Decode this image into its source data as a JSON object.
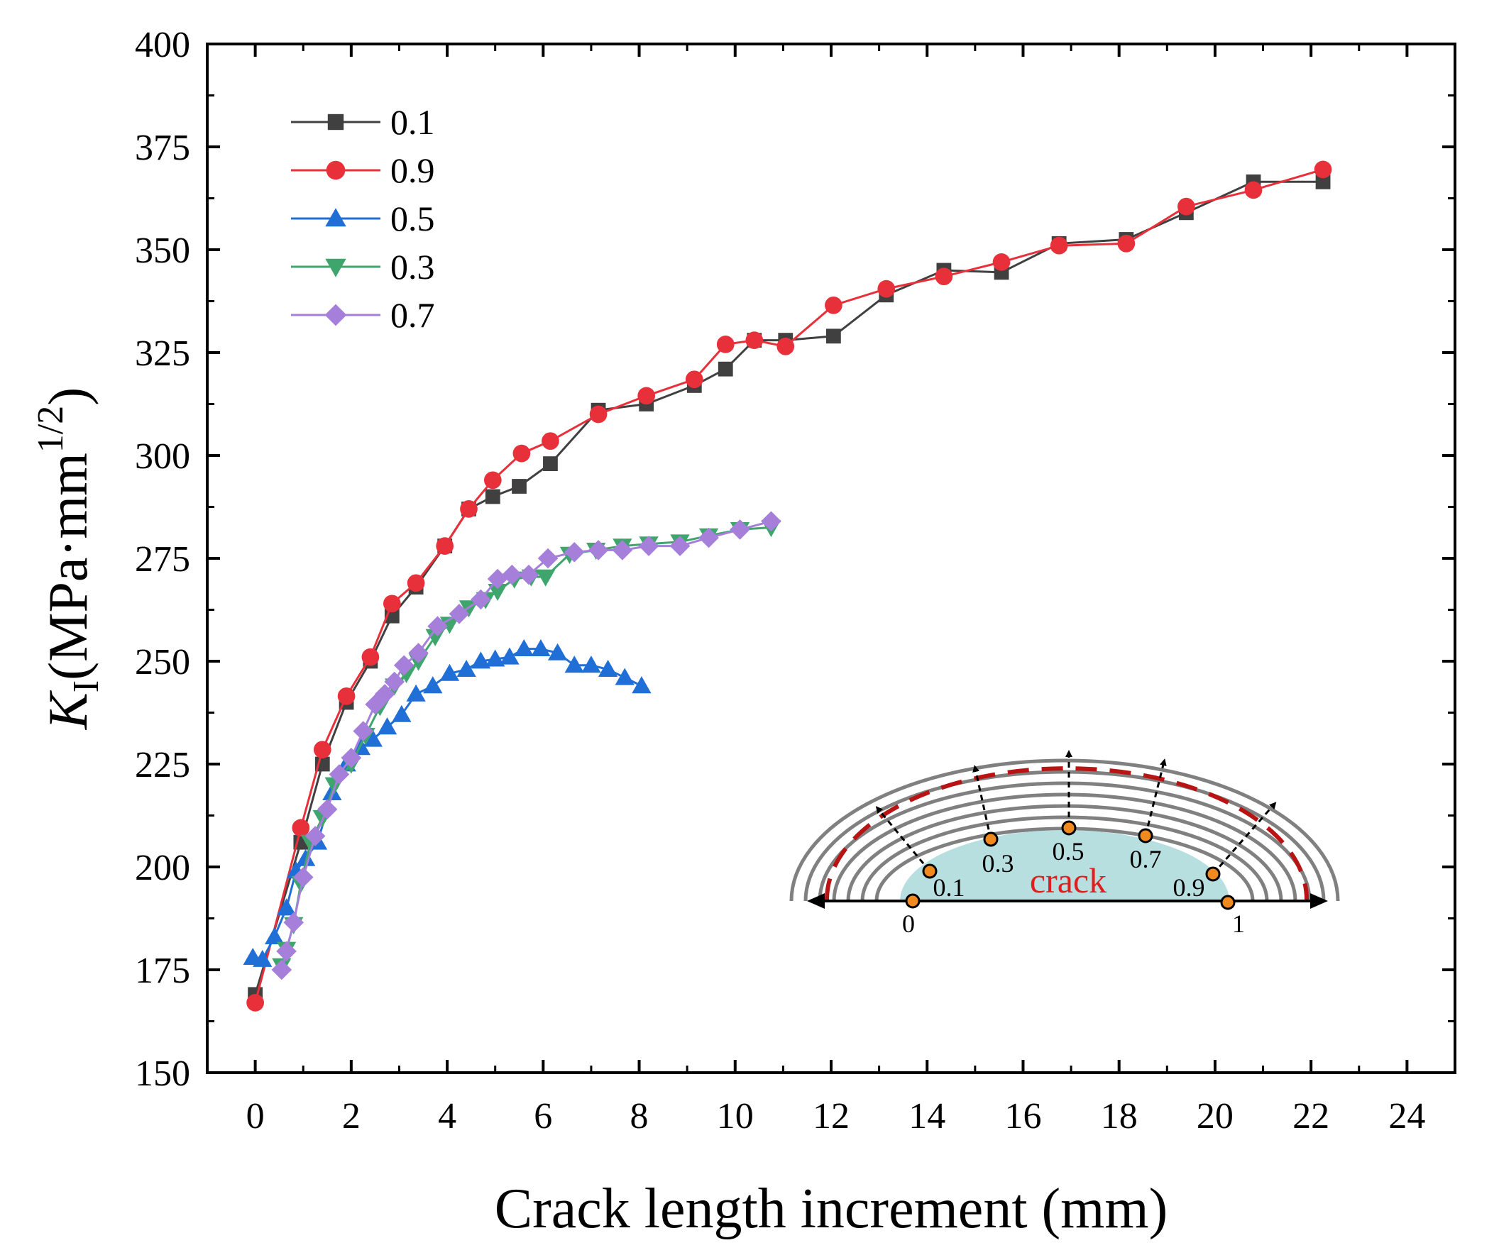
{
  "chart_data": {
    "type": "line",
    "xlabel": "Crack length increment (mm)",
    "ylabel": {
      "main": "K",
      "subscript": "I",
      "unit": "(MPa·mm",
      "superscript": "1/2",
      "close": ")"
    },
    "xlim": [
      -1,
      25
    ],
    "ylim": [
      150,
      400
    ],
    "xticks": [
      0,
      2,
      4,
      6,
      8,
      10,
      12,
      14,
      16,
      18,
      20,
      22,
      24
    ],
    "yticks": [
      150,
      175,
      200,
      225,
      250,
      275,
      300,
      325,
      350,
      375,
      400
    ],
    "legend_position": "top-left",
    "series": [
      {
        "name": "0.1",
        "color": "#404040",
        "marker": "square",
        "points": [
          [
            0,
            169
          ],
          [
            0.95,
            206
          ],
          [
            1.4,
            225
          ],
          [
            1.9,
            240
          ],
          [
            2.4,
            250
          ],
          [
            2.85,
            261
          ],
          [
            3.35,
            268
          ],
          [
            3.95,
            278
          ],
          [
            4.45,
            287
          ],
          [
            4.95,
            290
          ],
          [
            5.5,
            292.5
          ],
          [
            6.15,
            298
          ],
          [
            7.15,
            311
          ],
          [
            8.15,
            312.5
          ],
          [
            9.15,
            317
          ],
          [
            9.8,
            321
          ],
          [
            10.4,
            328
          ],
          [
            11.05,
            328
          ],
          [
            12.05,
            329
          ],
          [
            13.15,
            339
          ],
          [
            14.35,
            345
          ],
          [
            15.55,
            344.5
          ],
          [
            16.75,
            351.5
          ],
          [
            18.15,
            352.5
          ],
          [
            19.4,
            359
          ],
          [
            20.8,
            366.5
          ],
          [
            22.25,
            366.5
          ]
        ]
      },
      {
        "name": "0.9",
        "color": "#e8303a",
        "marker": "circle",
        "points": [
          [
            0,
            167
          ],
          [
            0.95,
            209.5
          ],
          [
            1.4,
            228.5
          ],
          [
            1.9,
            241.5
          ],
          [
            2.4,
            251
          ],
          [
            2.85,
            264
          ],
          [
            3.35,
            269
          ],
          [
            3.95,
            278
          ],
          [
            4.45,
            287
          ],
          [
            4.95,
            294
          ],
          [
            5.55,
            300.5
          ],
          [
            6.15,
            303.5
          ],
          [
            7.15,
            310
          ],
          [
            8.15,
            314.5
          ],
          [
            9.15,
            318.5
          ],
          [
            9.8,
            327
          ],
          [
            10.4,
            328
          ],
          [
            11.05,
            326.5
          ],
          [
            12.05,
            336.5
          ],
          [
            13.15,
            340.5
          ],
          [
            14.35,
            343.5
          ],
          [
            15.55,
            347
          ],
          [
            16.75,
            351
          ],
          [
            18.15,
            351.5
          ],
          [
            19.4,
            360.5
          ],
          [
            20.8,
            364.5
          ],
          [
            22.25,
            369.5
          ]
        ]
      },
      {
        "name": "0.5",
        "color": "#1f6fd6",
        "marker": "triangle-up",
        "points": [
          [
            -0.05,
            178
          ],
          [
            0.15,
            177.5
          ],
          [
            0.4,
            183
          ],
          [
            0.65,
            190
          ],
          [
            0.85,
            199
          ],
          [
            1.05,
            202
          ],
          [
            1.3,
            206
          ],
          [
            1.6,
            218
          ],
          [
            1.9,
            225
          ],
          [
            2.2,
            229
          ],
          [
            2.45,
            231
          ],
          [
            2.75,
            234
          ],
          [
            3.05,
            237
          ],
          [
            3.35,
            242
          ],
          [
            3.7,
            244
          ],
          [
            4.05,
            247
          ],
          [
            4.4,
            248
          ],
          [
            4.7,
            250
          ],
          [
            5.0,
            250.5
          ],
          [
            5.3,
            251
          ],
          [
            5.6,
            253
          ],
          [
            5.95,
            253
          ],
          [
            6.3,
            252
          ],
          [
            6.65,
            249
          ],
          [
            7.0,
            249
          ],
          [
            7.35,
            248
          ],
          [
            7.7,
            246
          ],
          [
            8.05,
            244
          ]
        ]
      },
      {
        "name": "0.3",
        "color": "#3ea56c",
        "marker": "triangle-down",
        "points": [
          [
            0.55,
            176
          ],
          [
            0.65,
            180
          ],
          [
            0.8,
            186
          ],
          [
            0.95,
            196
          ],
          [
            1.15,
            206
          ],
          [
            1.4,
            212
          ],
          [
            1.65,
            220
          ],
          [
            2.0,
            225
          ],
          [
            2.3,
            232
          ],
          [
            2.6,
            239
          ],
          [
            2.9,
            244
          ],
          [
            3.15,
            247
          ],
          [
            3.4,
            250
          ],
          [
            3.75,
            256
          ],
          [
            4.05,
            259
          ],
          [
            4.45,
            263
          ],
          [
            4.8,
            265
          ],
          [
            5.05,
            267
          ],
          [
            5.4,
            270
          ],
          [
            5.75,
            270.5
          ],
          [
            6.05,
            270.5
          ],
          [
            6.55,
            276
          ],
          [
            7.1,
            277
          ],
          [
            7.65,
            278
          ],
          [
            8.2,
            278.5
          ],
          [
            8.85,
            279
          ],
          [
            9.45,
            280.5
          ],
          [
            10.1,
            282
          ],
          [
            10.75,
            282.5
          ]
        ]
      },
      {
        "name": "0.7",
        "color": "#a57fd9",
        "marker": "diamond",
        "points": [
          [
            0.55,
            175
          ],
          [
            0.65,
            179.5
          ],
          [
            0.8,
            186.5
          ],
          [
            1.0,
            197.5
          ],
          [
            1.25,
            207.5
          ],
          [
            1.5,
            214
          ],
          [
            1.75,
            222.5
          ],
          [
            2.0,
            226.5
          ],
          [
            2.25,
            233
          ],
          [
            2.5,
            239.5
          ],
          [
            2.7,
            242
          ],
          [
            2.9,
            245
          ],
          [
            3.1,
            249
          ],
          [
            3.4,
            252
          ],
          [
            3.8,
            258.5
          ],
          [
            4.25,
            261.5
          ],
          [
            4.7,
            265
          ],
          [
            5.05,
            270
          ],
          [
            5.35,
            271
          ],
          [
            5.7,
            271
          ],
          [
            6.1,
            275
          ],
          [
            6.65,
            276.5
          ],
          [
            7.15,
            277
          ],
          [
            7.65,
            277
          ],
          [
            8.2,
            278
          ],
          [
            8.85,
            278
          ],
          [
            9.45,
            280
          ],
          [
            10.1,
            282
          ],
          [
            10.75,
            284
          ]
        ]
      }
    ],
    "inset": {
      "crack_label": "crack",
      "axis_start_label": "0",
      "axis_end_label": "1",
      "point_labels": [
        "0.1",
        "0.3",
        "0.5",
        "0.7",
        "0.9"
      ]
    }
  }
}
